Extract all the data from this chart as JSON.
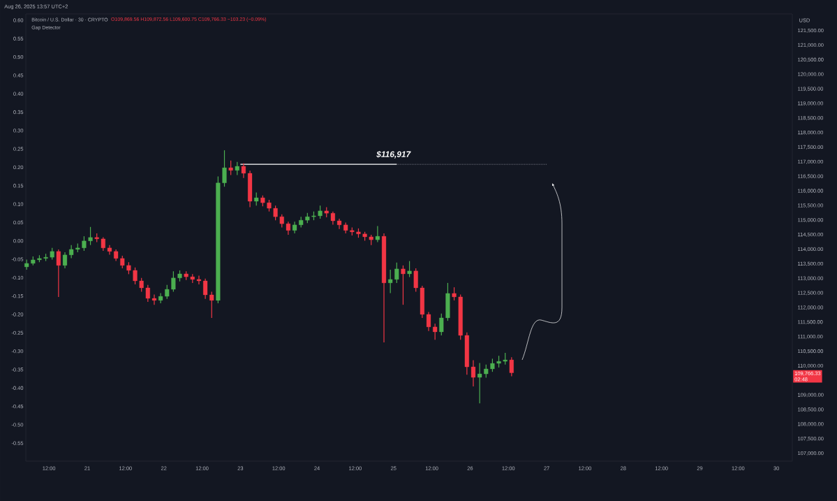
{
  "chart_data": {
    "type": "candlestick",
    "title": "Bitcoin / U.S. Dollar · 30 · CRYPTO",
    "subtitle": "O109,869.56 H109,872.56 L109,600.75 C109,766.33 −103.23 (−0.09%)",
    "ylabel": "USD",
    "annotations": [
      "Aug 26, 2025 13:57 UTC+2",
      "Gap Detector",
      {
        "text": "$116,917",
        "x": "2025-08-25T00:00",
        "y": 116917
      },
      "109,766.33",
      "02:48"
    ],
    "x": [
      "2025-08-20T05:00",
      "2025-08-20T07:00",
      "2025-08-20T09:00",
      "2025-08-20T11:00",
      "2025-08-20T13:00",
      "2025-08-20T15:00",
      "2025-08-20T17:00",
      "2025-08-20T19:00",
      "2025-08-20T21:00",
      "2025-08-20T23:00",
      "2025-08-21T01:00",
      "2025-08-21T03:00",
      "2025-08-21T05:00",
      "2025-08-21T07:00",
      "2025-08-21T09:00",
      "2025-08-21T11:00",
      "2025-08-21T13:00",
      "2025-08-21T15:00",
      "2025-08-21T17:00",
      "2025-08-21T19:00",
      "2025-08-21T21:00",
      "2025-08-21T23:00",
      "2025-08-22T01:00",
      "2025-08-22T03:00",
      "2025-08-22T05:00",
      "2025-08-22T07:00",
      "2025-08-22T09:00",
      "2025-08-22T11:00",
      "2025-08-22T13:00",
      "2025-08-22T15:00",
      "2025-08-22T17:00",
      "2025-08-22T19:00",
      "2025-08-22T21:00",
      "2025-08-22T23:00",
      "2025-08-23T01:00",
      "2025-08-23T03:00",
      "2025-08-23T05:00",
      "2025-08-23T07:00",
      "2025-08-23T09:00",
      "2025-08-23T11:00",
      "2025-08-23T13:00",
      "2025-08-23T15:00",
      "2025-08-23T17:00",
      "2025-08-23T19:00",
      "2025-08-23T21:00",
      "2025-08-23T23:00",
      "2025-08-24T01:00",
      "2025-08-24T03:00",
      "2025-08-24T05:00",
      "2025-08-24T07:00",
      "2025-08-24T09:00",
      "2025-08-24T11:00",
      "2025-08-24T13:00",
      "2025-08-24T15:00",
      "2025-08-24T17:00",
      "2025-08-24T19:00",
      "2025-08-24T21:00",
      "2025-08-24T23:00",
      "2025-08-25T01:00",
      "2025-08-25T03:00",
      "2025-08-25T05:00",
      "2025-08-25T07:00",
      "2025-08-25T09:00",
      "2025-08-25T11:00",
      "2025-08-25T13:00",
      "2025-08-25T15:00",
      "2025-08-25T17:00",
      "2025-08-25T19:00",
      "2025-08-25T21:00",
      "2025-08-25T23:00",
      "2025-08-26T01:00",
      "2025-08-26T03:00",
      "2025-08-26T05:00",
      "2025-08-26T07:00",
      "2025-08-26T09:00",
      "2025-08-26T11:00",
      "2025-08-26T13:00"
    ],
    "ohlc": [
      [
        113400,
        113650,
        113300,
        113520
      ],
      [
        113520,
        113760,
        113450,
        113640
      ],
      [
        113640,
        113800,
        113560,
        113690
      ],
      [
        113690,
        113850,
        113600,
        113730
      ],
      [
        113730,
        114050,
        113650,
        113930
      ],
      [
        113930,
        114000,
        112370,
        113450
      ],
      [
        113450,
        113900,
        113350,
        113810
      ],
      [
        113810,
        114150,
        113700,
        114000
      ],
      [
        114000,
        114200,
        113900,
        114050
      ],
      [
        114050,
        114450,
        113950,
        114290
      ],
      [
        114290,
        114770,
        114150,
        114410
      ],
      [
        114410,
        114550,
        114250,
        114360
      ],
      [
        114360,
        114420,
        113950,
        114050
      ],
      [
        114050,
        114150,
        113820,
        113930
      ],
      [
        113930,
        114000,
        113600,
        113690
      ],
      [
        113690,
        113780,
        113350,
        113450
      ],
      [
        113450,
        113560,
        113150,
        113280
      ],
      [
        113280,
        113380,
        112800,
        112920
      ],
      [
        112920,
        113020,
        112550,
        112680
      ],
      [
        112680,
        112780,
        112200,
        112320
      ],
      [
        112320,
        112450,
        112100,
        112250
      ],
      [
        112250,
        112500,
        112150,
        112390
      ],
      [
        112390,
        112780,
        112300,
        112630
      ],
      [
        112630,
        113250,
        112550,
        113020
      ],
      [
        113020,
        113280,
        112900,
        113160
      ],
      [
        113160,
        113250,
        112950,
        113060
      ],
      [
        113060,
        113150,
        112850,
        112970
      ],
      [
        112970,
        113100,
        112800,
        112920
      ],
      [
        112920,
        113000,
        112300,
        112440
      ],
      [
        112440,
        112550,
        111650,
        112250
      ],
      [
        112250,
        116500,
        112150,
        116280
      ],
      [
        116280,
        117400,
        116150,
        116800
      ],
      [
        116800,
        117050,
        116550,
        116710
      ],
      [
        116710,
        117000,
        116550,
        116850
      ],
      [
        116850,
        116950,
        116450,
        116610
      ],
      [
        116610,
        116700,
        115450,
        115650
      ],
      [
        115650,
        115950,
        115500,
        115770
      ],
      [
        115770,
        115850,
        115480,
        115600
      ],
      [
        115600,
        115700,
        115300,
        115410
      ],
      [
        115410,
        115500,
        115000,
        115120
      ],
      [
        115120,
        115200,
        114750,
        114880
      ],
      [
        114880,
        114950,
        114500,
        114650
      ],
      [
        114650,
        114950,
        114550,
        114840
      ],
      [
        114840,
        115120,
        114750,
        115000
      ],
      [
        115000,
        115250,
        114900,
        115120
      ],
      [
        115120,
        115300,
        115000,
        115150
      ],
      [
        115150,
        115500,
        115050,
        115320
      ],
      [
        115320,
        115450,
        115100,
        115240
      ],
      [
        115240,
        115300,
        114850,
        114980
      ],
      [
        114980,
        115050,
        114700,
        114840
      ],
      [
        114840,
        114920,
        114550,
        114650
      ],
      [
        114650,
        114750,
        114480,
        114600
      ],
      [
        114600,
        114720,
        114400,
        114530
      ],
      [
        114530,
        114600,
        114300,
        114430
      ],
      [
        114430,
        114500,
        114150,
        114330
      ],
      [
        114330,
        114800,
        114250,
        114450
      ],
      [
        114450,
        114550,
        110810,
        112850
      ],
      [
        112850,
        113300,
        112500,
        112970
      ],
      [
        112970,
        113550,
        112850,
        113330
      ],
      [
        113330,
        113450,
        112100,
        113160
      ],
      [
        113160,
        113600,
        113050,
        113260
      ],
      [
        113260,
        113350,
        112550,
        112680
      ],
      [
        112680,
        112750,
        111650,
        111770
      ],
      [
        111770,
        111850,
        111200,
        111340
      ],
      [
        111340,
        111450,
        110900,
        111170
      ],
      [
        111170,
        111800,
        111050,
        111650
      ],
      [
        111650,
        112850,
        111550,
        112490
      ],
      [
        112490,
        112700,
        112250,
        112370
      ],
      [
        112370,
        112450,
        110900,
        111050
      ],
      [
        111050,
        111150,
        109700,
        109970
      ],
      [
        109970,
        110200,
        109300,
        109610
      ],
      [
        109610,
        110100,
        108720,
        109730
      ],
      [
        109730,
        110050,
        109600,
        109900
      ],
      [
        109900,
        110250,
        109800,
        110090
      ],
      [
        110090,
        110350,
        109950,
        110160
      ],
      [
        110160,
        110450,
        110050,
        110210
      ],
      [
        110210,
        110300,
        109650,
        109766.33
      ]
    ],
    "series": [
      {
        "type": "line",
        "x": [
          "2025-08-23T00:00",
          "2025-08-25T01:00"
        ],
        "values": [
          116917,
          116917
        ],
        "color": "#ffffff",
        "line_style": "solid"
      },
      {
        "type": "line",
        "x": [
          "2025-08-25T01:00",
          "2025-08-27T00:00"
        ],
        "values": [
          116917,
          116917
        ],
        "color": "#787b86",
        "line_style": "dotted"
      }
    ],
    "xlim": [
      "2025-08-20T04:45",
      "2025-08-30T05:00"
    ],
    "xticks": [
      {
        "value": "2025-08-20T12:00",
        "label": "12:00"
      },
      {
        "value": "2025-08-21",
        "label": "21"
      },
      {
        "value": "2025-08-21T12:00",
        "label": "12:00"
      },
      {
        "value": "2025-08-22",
        "label": "22"
      },
      {
        "value": "2025-08-22T12:00",
        "label": "12:00"
      },
      {
        "value": "2025-08-23",
        "label": "23"
      },
      {
        "value": "2025-08-23T12:00",
        "label": "12:00"
      },
      {
        "value": "2025-08-24",
        "label": "24"
      },
      {
        "value": "2025-08-24T12:00",
        "label": "12:00"
      },
      {
        "value": "2025-08-25",
        "label": "25"
      },
      {
        "value": "2025-08-25T12:00",
        "label": "12:00"
      },
      {
        "value": "2025-08-26",
        "label": "26"
      },
      {
        "value": "2025-08-26T12:00",
        "label": "12:00"
      },
      {
        "value": "2025-08-27",
        "label": "27"
      },
      {
        "value": "2025-08-27T12:00",
        "label": "12:00"
      },
      {
        "value": "2025-08-28",
        "label": "28"
      },
      {
        "value": "2025-08-28T12:00",
        "label": "12:00"
      },
      {
        "value": "2025-08-29",
        "label": "29"
      },
      {
        "value": "2025-08-29T12:00",
        "label": "12:00"
      },
      {
        "value": "2025-08-30",
        "label": "30"
      }
    ],
    "ylim": [
      106736,
      122075
    ],
    "yticks": [
      {
        "value": 107000,
        "label": "107,000.00"
      },
      {
        "value": 107500,
        "label": "107,500.00"
      },
      {
        "value": 108000,
        "label": "108,000.00"
      },
      {
        "value": 108500,
        "label": "108,500.00"
      },
      {
        "value": 109000,
        "label": "109,000.00"
      },
      {
        "value": 110000,
        "label": "110,000.00"
      },
      {
        "value": 110500,
        "label": "110,500.00"
      },
      {
        "value": 111000,
        "label": "111,000.00"
      },
      {
        "value": 111500,
        "label": "111,500.00"
      },
      {
        "value": 112000,
        "label": "112,000.00"
      },
      {
        "value": 112500,
        "label": "112,500.00"
      },
      {
        "value": 113000,
        "label": "113,000.00"
      },
      {
        "value": 113500,
        "label": "113,500.00"
      },
      {
        "value": 114000,
        "label": "114,000.00"
      },
      {
        "value": 114500,
        "label": "114,500.00"
      },
      {
        "value": 115000,
        "label": "115,000.00"
      },
      {
        "value": 115500,
        "label": "115,500.00"
      },
      {
        "value": 116000,
        "label": "116,000.00"
      },
      {
        "value": 116500,
        "label": "116,500.00"
      },
      {
        "value": 117000,
        "label": "117,000.00"
      },
      {
        "value": 117500,
        "label": "117,500.00"
      },
      {
        "value": 118000,
        "label": "118,000.00"
      },
      {
        "value": 118500,
        "label": "118,500.00"
      },
      {
        "value": 119000,
        "label": "119,000.00"
      },
      {
        "value": 119500,
        "label": "119,500.00"
      },
      {
        "value": 120000,
        "label": "120,000.00"
      },
      {
        "value": 120500,
        "label": "120,500.00"
      },
      {
        "value": 121000,
        "label": "121,000.00"
      },
      {
        "value": 121500,
        "label": "121,500.00"
      }
    ],
    "y2lim": [
      -0.599,
      0.617
    ],
    "y2ticks": [
      {
        "value": -0.55,
        "label": "-0.55"
      },
      {
        "value": -0.5,
        "label": "-0.50"
      },
      {
        "value": -0.45,
        "label": "-0.45"
      },
      {
        "value": -0.4,
        "label": "-0.40"
      },
      {
        "value": -0.35,
        "label": "-0.35"
      },
      {
        "value": -0.3,
        "label": "-0.30"
      },
      {
        "value": -0.25,
        "label": "-0.25"
      },
      {
        "value": -0.2,
        "label": "-0.20"
      },
      {
        "value": -0.15,
        "label": "-0.15"
      },
      {
        "value": -0.1,
        "label": "-0.10"
      },
      {
        "value": -0.05,
        "label": "-0.05"
      },
      {
        "value": 0,
        "label": "0.00"
      },
      {
        "value": 0.05,
        "label": "0.05"
      },
      {
        "value": 0.1,
        "label": "0.10"
      },
      {
        "value": 0.15,
        "label": "0.15"
      },
      {
        "value": 0.2,
        "label": "0.20"
      },
      {
        "value": 0.25,
        "label": "0.25"
      },
      {
        "value": 0.3,
        "label": "0.30"
      },
      {
        "value": 0.35,
        "label": "0.35"
      },
      {
        "value": 0.4,
        "label": "0.40"
      },
      {
        "value": 0.45,
        "label": "0.45"
      },
      {
        "value": 0.5,
        "label": "0.50"
      },
      {
        "value": 0.55,
        "label": "0.55"
      },
      {
        "value": 0.6,
        "label": "0.60"
      }
    ],
    "grid": false
  }
}
